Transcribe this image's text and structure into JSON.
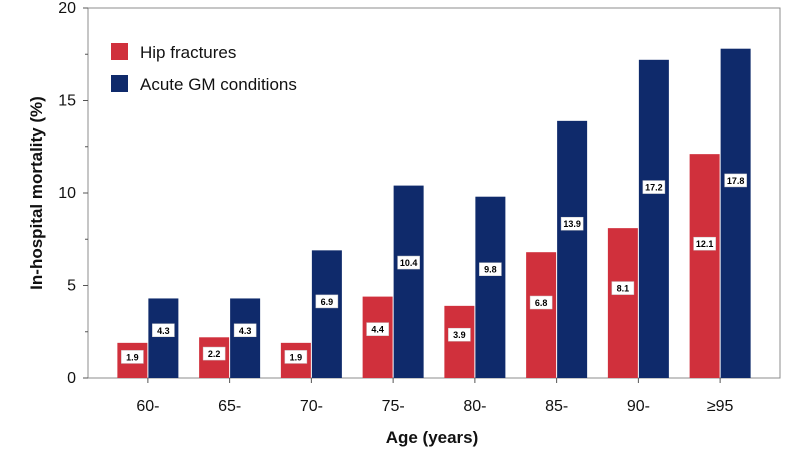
{
  "chart_data": {
    "type": "bar",
    "title": "",
    "xlabel": "Age (years)",
    "ylabel": "In-hospital mortality (%)",
    "ylim": [
      0,
      20
    ],
    "yticks": [
      0,
      5,
      10,
      15,
      20
    ],
    "categories": [
      "60-",
      "65-",
      "70-",
      "75-",
      "80-",
      "85-",
      "90-",
      "≥95"
    ],
    "series": [
      {
        "name": "Hip fractures",
        "color": "#d0303c",
        "values": [
          1.9,
          2.2,
          1.9,
          4.4,
          3.9,
          6.8,
          8.1,
          12.1
        ]
      },
      {
        "name": "Acute GM conditions",
        "color": "#0f2a6b",
        "values": [
          4.3,
          4.3,
          6.9,
          10.4,
          9.8,
          13.9,
          17.2,
          17.8
        ]
      }
    ],
    "grid": false,
    "legend": "top-left",
    "data_labels": true
  }
}
